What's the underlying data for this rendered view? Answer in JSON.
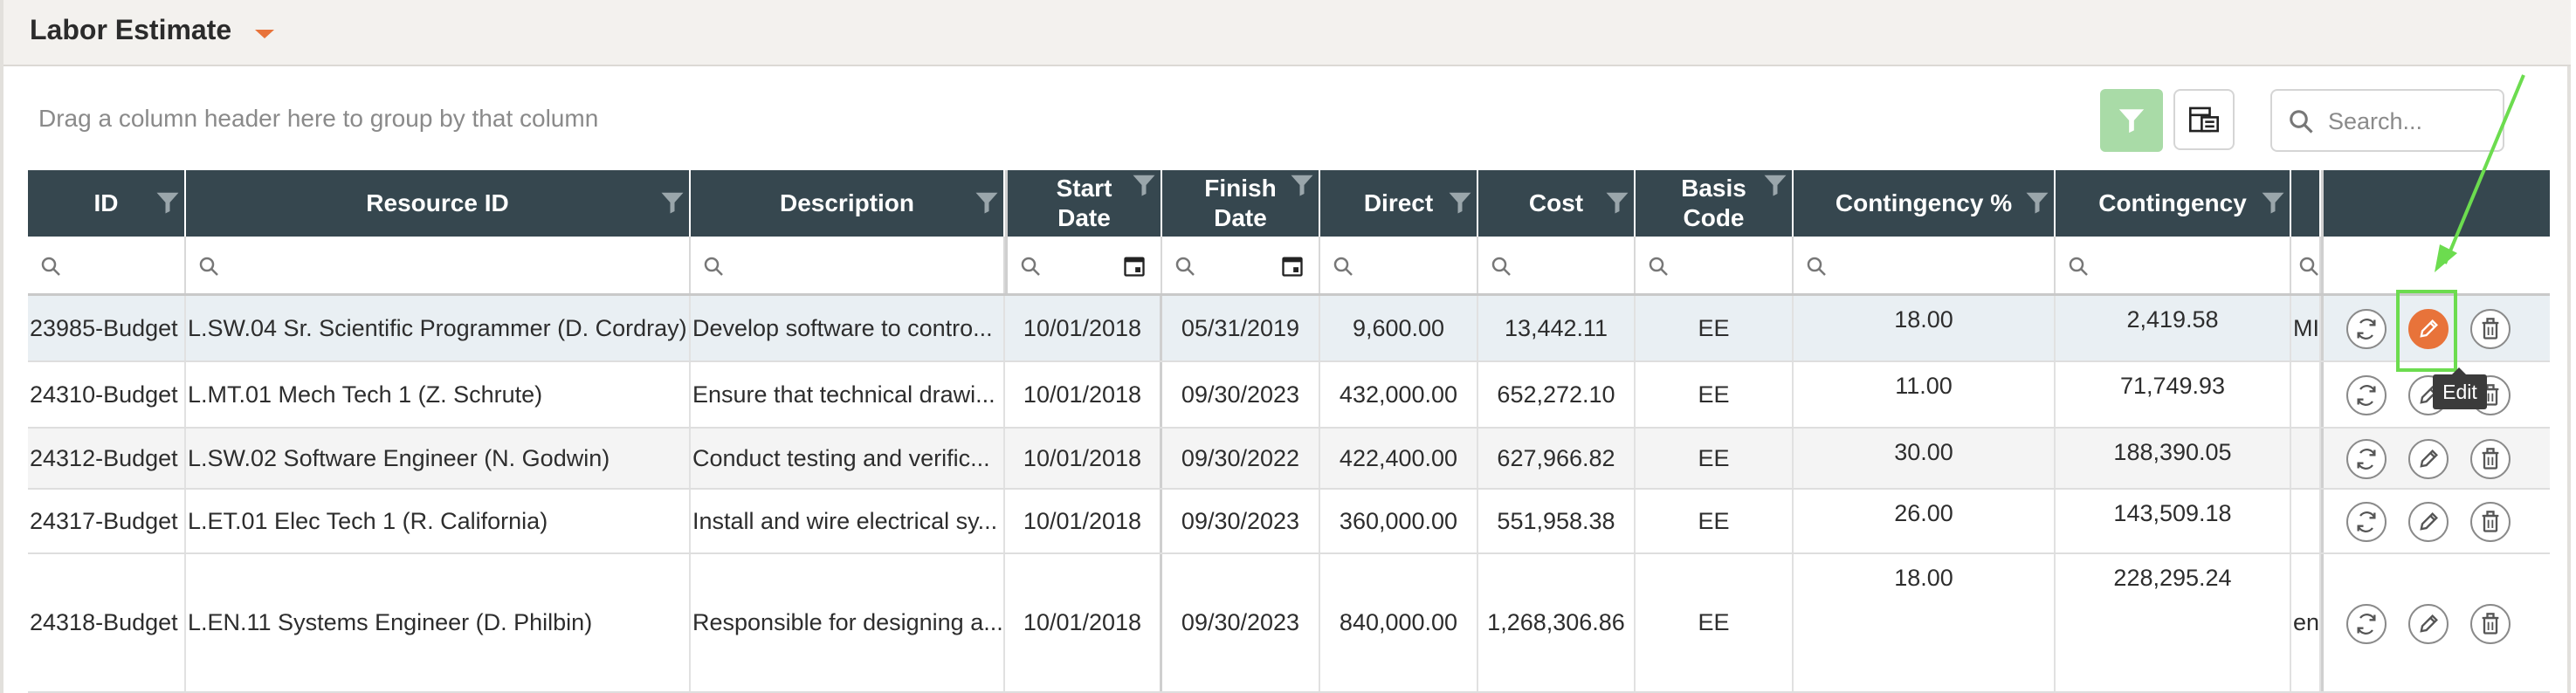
{
  "panel": {
    "title": "Labor Estimate"
  },
  "toolbar": {
    "group_hint": "Drag a column header here to group by that column",
    "search_placeholder": "Search..."
  },
  "columns": [
    "ID",
    "Resource ID",
    "Description",
    "Start Date",
    "Finish Date",
    "Direct",
    "Cost",
    "Basis Code",
    "Contingency %",
    "Contingency",
    ""
  ],
  "rows": [
    {
      "id": "23985-Budget",
      "resource": "L.SW.04 Sr. Scientific Programmer (D. Cordray)",
      "description": "Develop software to contro...",
      "start": "10/01/2018",
      "finish": "05/31/2019",
      "direct": "9,600.00",
      "cost": "13,442.11",
      "basis": "EE",
      "cont_pct": "18.00",
      "contingency": "2,419.58",
      "extra": "MI"
    },
    {
      "id": "24310-Budget",
      "resource": "L.MT.01 Mech Tech 1 (Z. Schrute)",
      "description": "Ensure that technical drawi...",
      "start": "10/01/2018",
      "finish": "09/30/2023",
      "direct": "432,000.00",
      "cost": "652,272.10",
      "basis": "EE",
      "cont_pct": "11.00",
      "contingency": "71,749.93",
      "extra": ""
    },
    {
      "id": "24312-Budget",
      "resource": "L.SW.02 Software Engineer (N. Godwin)",
      "description": "Conduct testing and verific...",
      "start": "10/01/2018",
      "finish": "09/30/2022",
      "direct": "422,400.00",
      "cost": "627,966.82",
      "basis": "EE",
      "cont_pct": "30.00",
      "contingency": "188,390.05",
      "extra": ""
    },
    {
      "id": "24317-Budget",
      "resource": "L.ET.01 Elec Tech 1 (R. California)",
      "description": "Install and wire electrical sy...",
      "start": "10/01/2018",
      "finish": "09/30/2023",
      "direct": "360,000.00",
      "cost": "551,958.38",
      "basis": "EE",
      "cont_pct": "26.00",
      "contingency": "143,509.18",
      "extra": ""
    },
    {
      "id": "24318-Budget",
      "resource": "L.EN.11 Systems Engineer (D. Philbin)",
      "description": "Responsible for designing a...",
      "start": "10/01/2018",
      "finish": "09/30/2023",
      "direct": "840,000.00",
      "cost": "1,268,306.86",
      "basis": "EE",
      "cont_pct": "18.00",
      "contingency": "228,295.24",
      "extra": "en"
    }
  ],
  "tooltip": "Edit",
  "colors": {
    "header_bg": "#36474f",
    "accent_orange": "#e8733a",
    "highlight_green": "#6cdc4f",
    "filter_active": "#a9dba7"
  },
  "icons": [
    "filter-icon",
    "column-chooser-icon",
    "search-icon",
    "calendar-icon",
    "refresh-icon",
    "edit-icon",
    "delete-icon",
    "caret-down-icon"
  ]
}
